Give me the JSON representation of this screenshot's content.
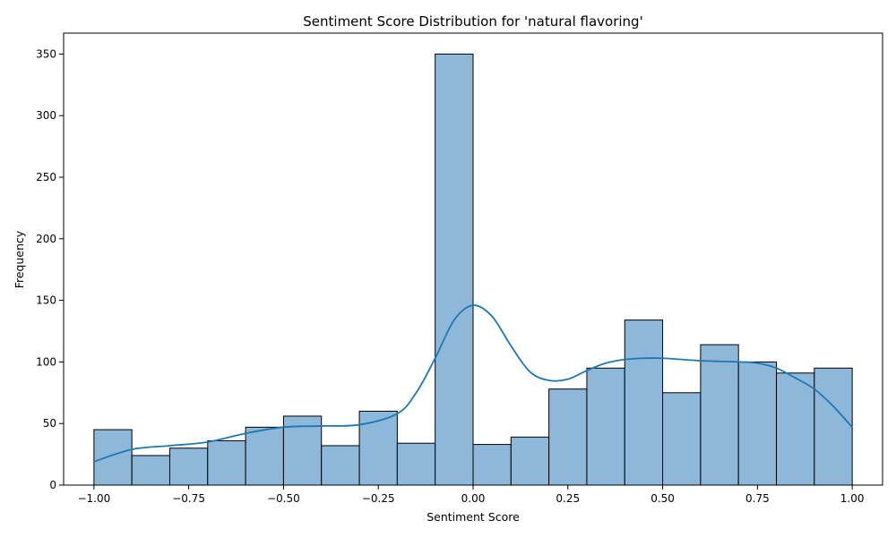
{
  "chart_data": {
    "type": "bar",
    "subtype": "histogram-with-kde",
    "title": "Sentiment Score Distribution for 'natural flavoring'",
    "xlabel": "Sentiment Score",
    "ylabel": "Frequency",
    "xlim": [
      -1.08,
      1.08
    ],
    "ylim": [
      0,
      367
    ],
    "x_ticks": [
      -1.0,
      -0.75,
      -0.5,
      -0.25,
      0.0,
      0.25,
      0.5,
      0.75,
      1.0
    ],
    "x_tick_labels": [
      "−1.00",
      "−0.75",
      "−0.50",
      "−0.25",
      "0.00",
      "0.25",
      "0.50",
      "0.75",
      "1.00"
    ],
    "y_ticks": [
      0,
      50,
      100,
      150,
      200,
      250,
      300,
      350
    ],
    "y_tick_labels": [
      "0",
      "50",
      "100",
      "150",
      "200",
      "250",
      "300",
      "350"
    ],
    "bins": [
      {
        "start": -1.0,
        "end": -0.9,
        "count": 45
      },
      {
        "start": -0.9,
        "end": -0.8,
        "count": 24
      },
      {
        "start": -0.8,
        "end": -0.7,
        "count": 30
      },
      {
        "start": -0.7,
        "end": -0.6,
        "count": 36
      },
      {
        "start": -0.6,
        "end": -0.5,
        "count": 47
      },
      {
        "start": -0.5,
        "end": -0.4,
        "count": 56
      },
      {
        "start": -0.4,
        "end": -0.3,
        "count": 32
      },
      {
        "start": -0.3,
        "end": -0.2,
        "count": 60
      },
      {
        "start": -0.2,
        "end": -0.1,
        "count": 34
      },
      {
        "start": -0.1,
        "end": 0.0,
        "count": 350
      },
      {
        "start": 0.0,
        "end": 0.1,
        "count": 33
      },
      {
        "start": 0.1,
        "end": 0.2,
        "count": 39
      },
      {
        "start": 0.2,
        "end": 0.3,
        "count": 78
      },
      {
        "start": 0.3,
        "end": 0.4,
        "count": 95
      },
      {
        "start": 0.4,
        "end": 0.5,
        "count": 134
      },
      {
        "start": 0.5,
        "end": 0.6,
        "count": 75
      },
      {
        "start": 0.6,
        "end": 0.7,
        "count": 114
      },
      {
        "start": 0.7,
        "end": 0.8,
        "count": 100
      },
      {
        "start": 0.8,
        "end": 0.9,
        "count": 91
      },
      {
        "start": 0.9,
        "end": 1.0,
        "count": 95
      }
    ],
    "kde": {
      "x": [
        -1.0,
        -0.9,
        -0.8,
        -0.7,
        -0.6,
        -0.5,
        -0.4,
        -0.3,
        -0.2,
        -0.15,
        -0.1,
        -0.05,
        0.0,
        0.05,
        0.1,
        0.15,
        0.2,
        0.25,
        0.3,
        0.35,
        0.4,
        0.45,
        0.5,
        0.6,
        0.7,
        0.75,
        0.8,
        0.85,
        0.9,
        0.95,
        1.0
      ],
      "y": [
        19,
        29,
        32,
        35,
        42,
        47,
        48,
        49,
        58,
        75,
        103,
        134,
        146,
        137,
        113,
        92,
        85,
        86,
        93,
        99,
        102,
        103,
        103,
        101,
        100,
        99,
        95,
        87,
        78,
        64,
        47
      ]
    },
    "colors": {
      "bar_fill": "#8eb8d9",
      "bar_edge": "#000000",
      "kde_line": "#1f77b4",
      "axes": "#000000",
      "background": "#ffffff"
    },
    "grid": false,
    "legend": "none"
  }
}
